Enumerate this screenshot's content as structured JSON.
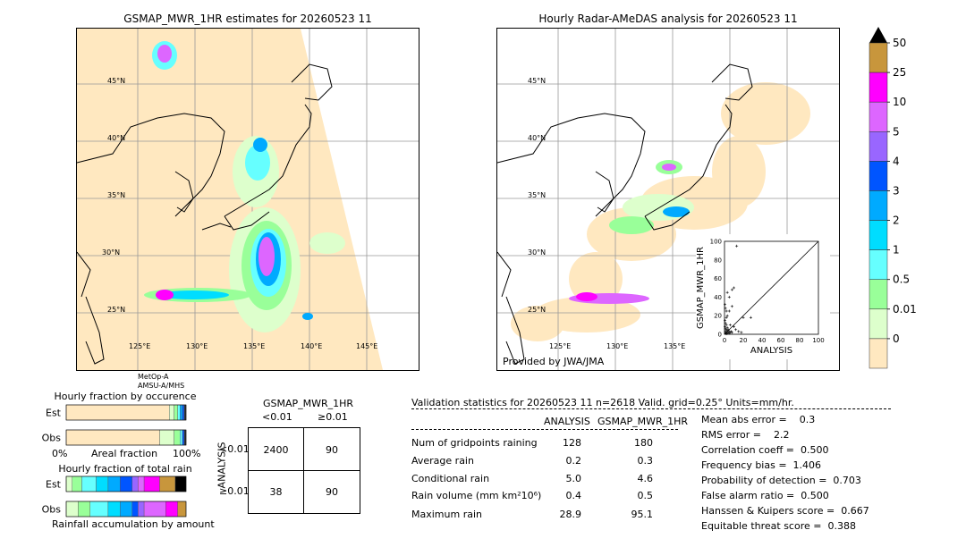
{
  "left_map": {
    "title": "GSMAP_MWR_1HR estimates for 20260523 11",
    "lat_labels": [
      "45°N",
      "40°N",
      "35°N",
      "30°N",
      "25°N"
    ],
    "lon_labels": [
      "125°E",
      "130°E",
      "135°E",
      "140°E",
      "145°E"
    ],
    "sensor_label_1": "MetOp-A",
    "sensor_label_2": "AMSU-A/MHS"
  },
  "right_map": {
    "title": "Hourly Radar-AMeDAS analysis for 20260523 11",
    "lat_labels": [
      "45°N",
      "40°N",
      "35°N",
      "30°N",
      "25°N"
    ],
    "lon_labels": [
      "125°E",
      "130°E",
      "135°E"
    ],
    "credit": "Provided by JWA/JMA"
  },
  "colorbar": {
    "labels": [
      "50",
      "25",
      "10",
      "5",
      "4",
      "3",
      "2",
      "1",
      "0.5",
      "0.01",
      "0"
    ],
    "colors": [
      "#c8963c",
      "#ff00ff",
      "#dd66ff",
      "#9966ff",
      "#0055ff",
      "#00aaff",
      "#00ddff",
      "#66ffff",
      "#99ff99",
      "#ddffcc",
      "#ffe8c0"
    ]
  },
  "chart_data": [
    {
      "type": "scatter",
      "xlabel": "ANALYSIS",
      "ylabel": "GSMAP_MWR_1HR",
      "xlim": [
        0,
        100
      ],
      "ylim": [
        0,
        100
      ],
      "xticks": [
        "0",
        "20",
        "40",
        "60",
        "80",
        "100"
      ],
      "yticks": [
        "0",
        "20",
        "40",
        "60",
        "80",
        "100"
      ],
      "points": [
        [
          1,
          1
        ],
        [
          2,
          2
        ],
        [
          3,
          1
        ],
        [
          1,
          3
        ],
        [
          2,
          0.5
        ],
        [
          4,
          2
        ],
        [
          5,
          3
        ],
        [
          3,
          4
        ],
        [
          6,
          2
        ],
        [
          2,
          5
        ],
        [
          1,
          6
        ],
        [
          0.5,
          8
        ],
        [
          3,
          7
        ],
        [
          5,
          1
        ],
        [
          7,
          3
        ],
        [
          8,
          2
        ],
        [
          4,
          5
        ],
        [
          2,
          10
        ],
        [
          1,
          12
        ],
        [
          0.5,
          15
        ],
        [
          3,
          20
        ],
        [
          2,
          25
        ],
        [
          1,
          28
        ],
        [
          0.5,
          32
        ],
        [
          5,
          40
        ],
        [
          8,
          30
        ],
        [
          10,
          8
        ],
        [
          12,
          5
        ],
        [
          15,
          3
        ],
        [
          18,
          2
        ],
        [
          20,
          18
        ],
        [
          28,
          18
        ],
        [
          10,
          50
        ],
        [
          8,
          48
        ],
        [
          3,
          45
        ],
        [
          5,
          25
        ],
        [
          2,
          18
        ],
        [
          13,
          95
        ],
        [
          6,
          10
        ]
      ]
    },
    {
      "type": "bar",
      "title": "Hourly fraction by occurence",
      "categories": [
        "Est",
        "Obs"
      ],
      "xlabel": "Areal fraction",
      "xtick_left": "0%",
      "xtick_right": "100%",
      "stacks": [
        [
          {
            "value": 0.86,
            "color": "#ffe8c0"
          },
          {
            "value": 0.04,
            "color": "#ddffcc"
          },
          {
            "value": 0.03,
            "color": "#99ff99"
          },
          {
            "value": 0.02,
            "color": "#66ffff"
          },
          {
            "value": 0.02,
            "color": "#00aaff"
          },
          {
            "value": 0.015,
            "color": "#0055ff"
          },
          {
            "value": 0.015,
            "color": "#333333"
          }
        ],
        [
          {
            "value": 0.78,
            "color": "#ffe8c0"
          },
          {
            "value": 0.12,
            "color": "#ddffcc"
          },
          {
            "value": 0.05,
            "color": "#99ff99"
          },
          {
            "value": 0.02,
            "color": "#66ffff"
          },
          {
            "value": 0.015,
            "color": "#0055ff"
          },
          {
            "value": 0.015,
            "color": "#333333"
          }
        ]
      ]
    },
    {
      "type": "bar",
      "title": "Hourly fraction of total rain",
      "categories": [
        "Est",
        "Obs"
      ],
      "xlabel": "Rainfall accumulation by amount",
      "stacks": [
        [
          {
            "value": 0.05,
            "color": "#ddffcc"
          },
          {
            "value": 0.08,
            "color": "#99ff99"
          },
          {
            "value": 0.12,
            "color": "#66ffff"
          },
          {
            "value": 0.1,
            "color": "#00ddff"
          },
          {
            "value": 0.1,
            "color": "#00aaff"
          },
          {
            "value": 0.1,
            "color": "#0055ff"
          },
          {
            "value": 0.05,
            "color": "#9966ff"
          },
          {
            "value": 0.05,
            "color": "#dd66ff"
          },
          {
            "value": 0.13,
            "color": "#ff00ff"
          },
          {
            "value": 0.13,
            "color": "#c8963c"
          },
          {
            "value": 0.09,
            "color": "#000000"
          }
        ],
        [
          {
            "value": 0.1,
            "color": "#ddffcc"
          },
          {
            "value": 0.1,
            "color": "#99ff99"
          },
          {
            "value": 0.15,
            "color": "#66ffff"
          },
          {
            "value": 0.1,
            "color": "#00ddff"
          },
          {
            "value": 0.1,
            "color": "#00aaff"
          },
          {
            "value": 0.05,
            "color": "#0055ff"
          },
          {
            "value": 0.05,
            "color": "#9966ff"
          },
          {
            "value": 0.18,
            "color": "#dd66ff"
          },
          {
            "value": 0.1,
            "color": "#ff00ff"
          },
          {
            "value": 0.07,
            "color": "#c8963c"
          }
        ]
      ]
    }
  ],
  "contingency": {
    "title": "GSMAP_MWR_1HR",
    "col_headers": [
      "<0.01",
      "≥0.01"
    ],
    "row_axis": "ANALYSIS",
    "row_headers": [
      "<0.01",
      "≥0.01"
    ],
    "cells": [
      "2400",
      "90",
      "38",
      "90"
    ]
  },
  "validation": {
    "header": "Validation statistics for 20260523 11  n=2618 Valid. grid=0.25° Units=mm/hr.",
    "col_analysis": "ANALYSIS",
    "col_gsmap": "GSMAP_MWR_1HR",
    "rows": [
      {
        "label": "Num of gridpoints raining",
        "a": "128",
        "g": "180"
      },
      {
        "label": "Average rain",
        "a": "0.2",
        "g": "0.3"
      },
      {
        "label": "Conditional rain",
        "a": "5.0",
        "g": "4.6"
      },
      {
        "label": "Rain volume (mm km²10⁶)",
        "a": "0.4",
        "g": "0.5"
      },
      {
        "label": "Maximum rain",
        "a": "28.9",
        "g": "95.1"
      }
    ],
    "scores": [
      "Mean abs error =    0.3",
      "RMS error =    2.2",
      "Correlation coeff =  0.500",
      "Frequency bias =  1.406",
      "Probability of detection =  0.703",
      "False alarm ratio =  0.500",
      "Hanssen & Kuipers score =  0.667",
      "Equitable threat score =  0.388"
    ]
  }
}
